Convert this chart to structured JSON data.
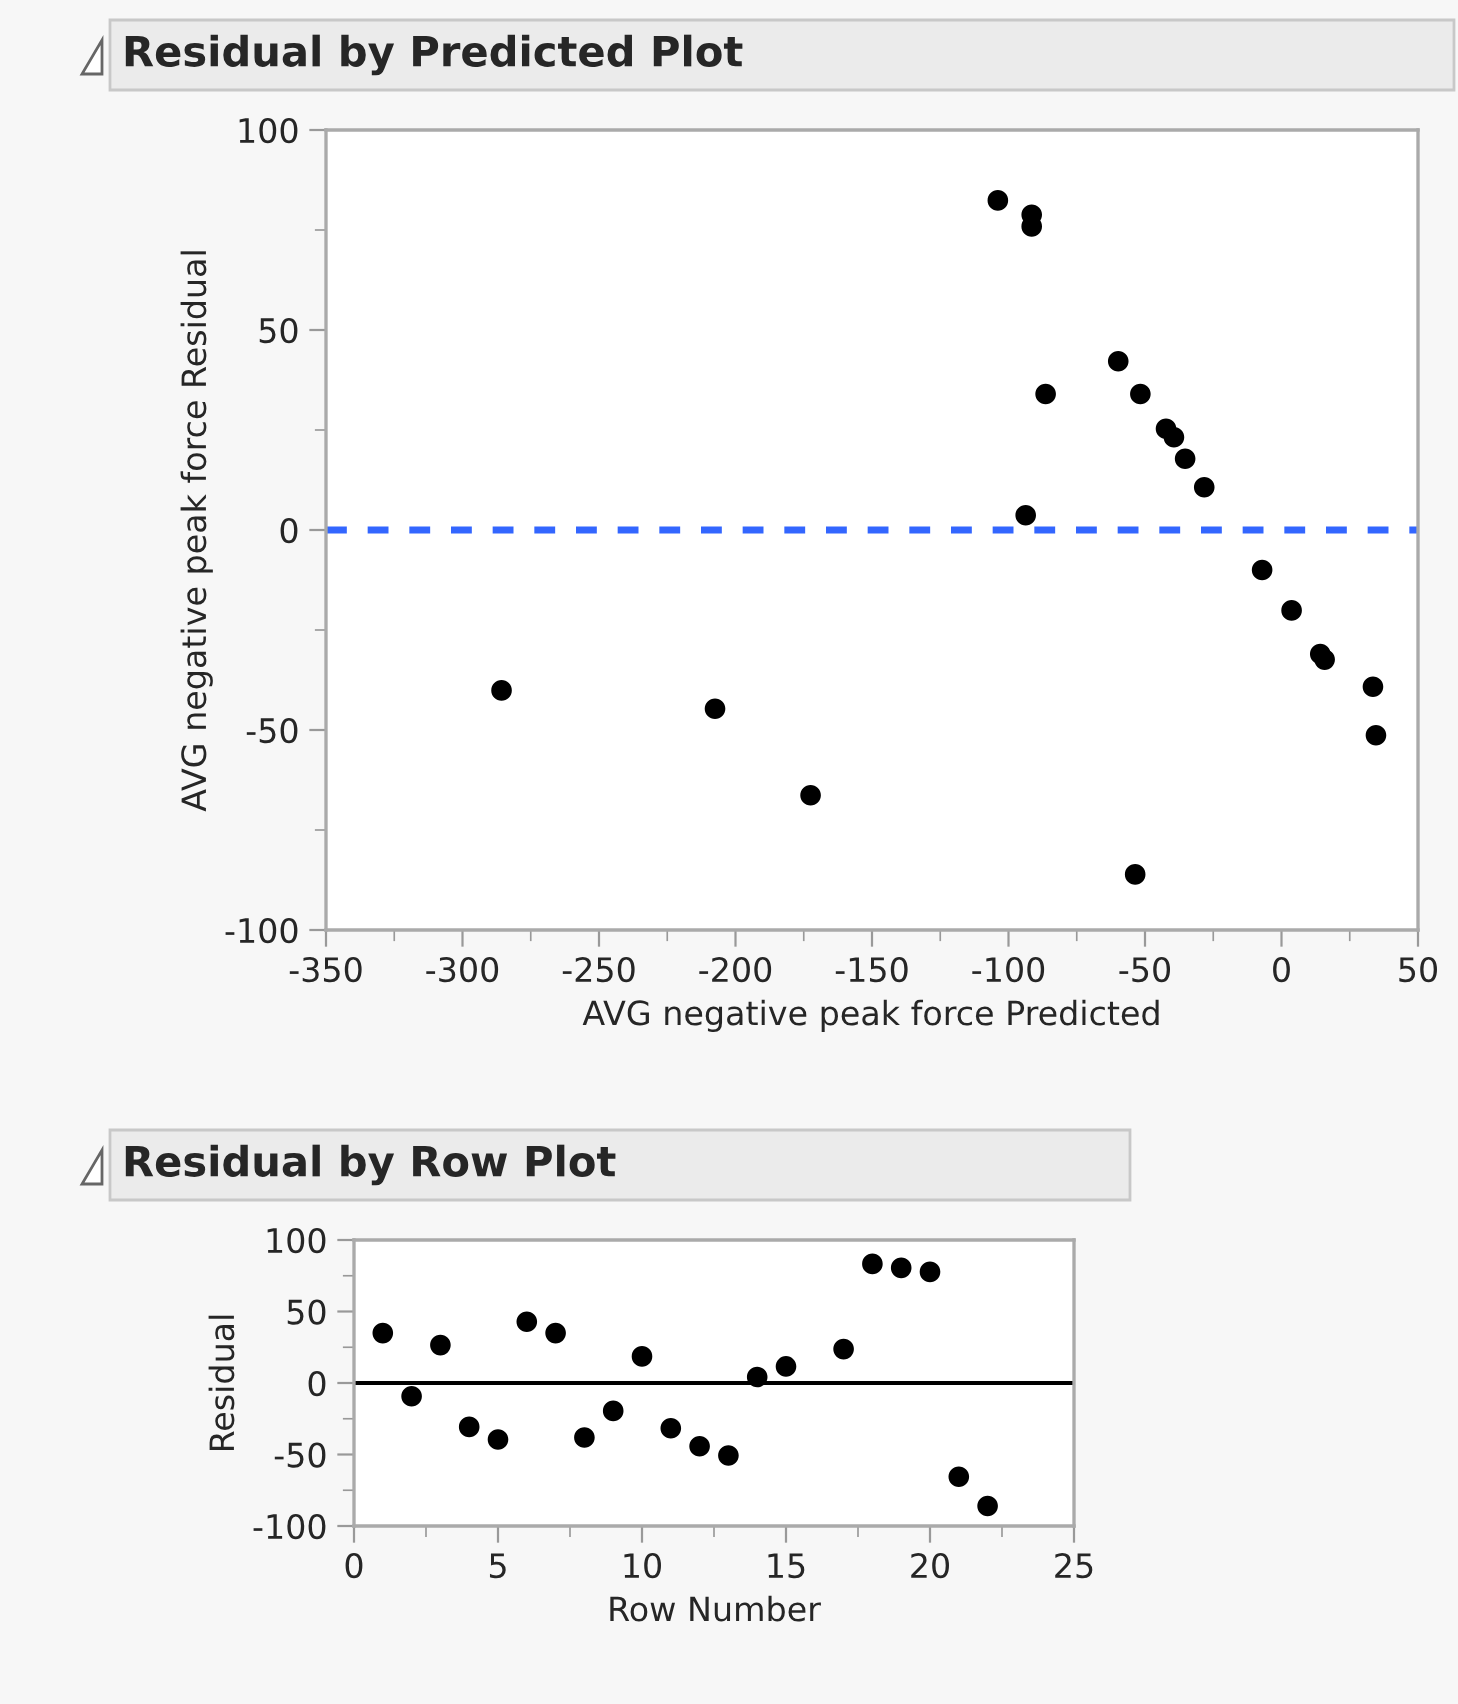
{
  "chart_data": [
    {
      "type": "scatter",
      "title": "Residual by Predicted Plot",
      "xlabel": "AVG negative peak force Predicted",
      "ylabel": "AVG negative peak force Residual",
      "series": [
        {
          "color": "#000000",
          "x": [
            -285.7,
            -207.5,
            -172.5,
            -103.9,
            -91.5,
            -91.5,
            -86.4,
            -93.7,
            -59.8,
            -51.7,
            -53.6,
            -42.3,
            -39.4,
            -35.3,
            -28.3,
            -7.1,
            3.7,
            14.2,
            15.8,
            33.5,
            34.6
          ],
          "values": [
            -40.1,
            -44.7,
            -66.3,
            82.4,
            78.8,
            75.9,
            34.0,
            3.7,
            42.2,
            34.0,
            -86.1,
            25.3,
            23.2,
            17.8,
            10.7,
            -10.0,
            -20.1,
            -31.0,
            -32.4,
            -39.2,
            -51.3
          ]
        }
      ],
      "xlim": [
        -350,
        50
      ],
      "xticks": [
        -350,
        -300,
        -250,
        -200,
        -150,
        -100,
        -50,
        0,
        50
      ],
      "ylim": [
        -100,
        100
      ],
      "yticks": [
        -100,
        -50,
        0,
        50,
        100
      ],
      "ref_lines": [
        {
          "axis": "y",
          "value": 0,
          "color": "#3366ff",
          "line_style": "dashed"
        }
      ],
      "marker": "circle",
      "grid": false,
      "legend": false
    },
    {
      "type": "scatter",
      "title": "Residual by Row Plot",
      "xlabel": "Row Number",
      "ylabel": "Residual",
      "series": [
        {
          "color": "#000000",
          "x": [
            1,
            2,
            3,
            4,
            5,
            6,
            7,
            8,
            9,
            10,
            11,
            12,
            13,
            14,
            15,
            17,
            18,
            19,
            20,
            21,
            22
          ],
          "values": [
            34.9,
            -9.3,
            26.5,
            -30.7,
            -39.5,
            42.8,
            34.9,
            -38.1,
            -19.5,
            18.6,
            -31.6,
            -44.2,
            -50.7,
            4.2,
            11.6,
            23.7,
            83.3,
            80.5,
            77.7,
            -65.6,
            -86.0
          ]
        }
      ],
      "xlim": [
        0,
        25
      ],
      "xticks": [
        0,
        5,
        10,
        15,
        20,
        25
      ],
      "ylim": [
        -100,
        100
      ],
      "yticks": [
        -100,
        -50,
        0,
        50,
        100
      ],
      "ref_lines": [
        {
          "axis": "y",
          "value": 0,
          "color": "#000000",
          "line_style": "solid"
        }
      ],
      "marker": "circle",
      "grid": false,
      "legend": false
    }
  ]
}
